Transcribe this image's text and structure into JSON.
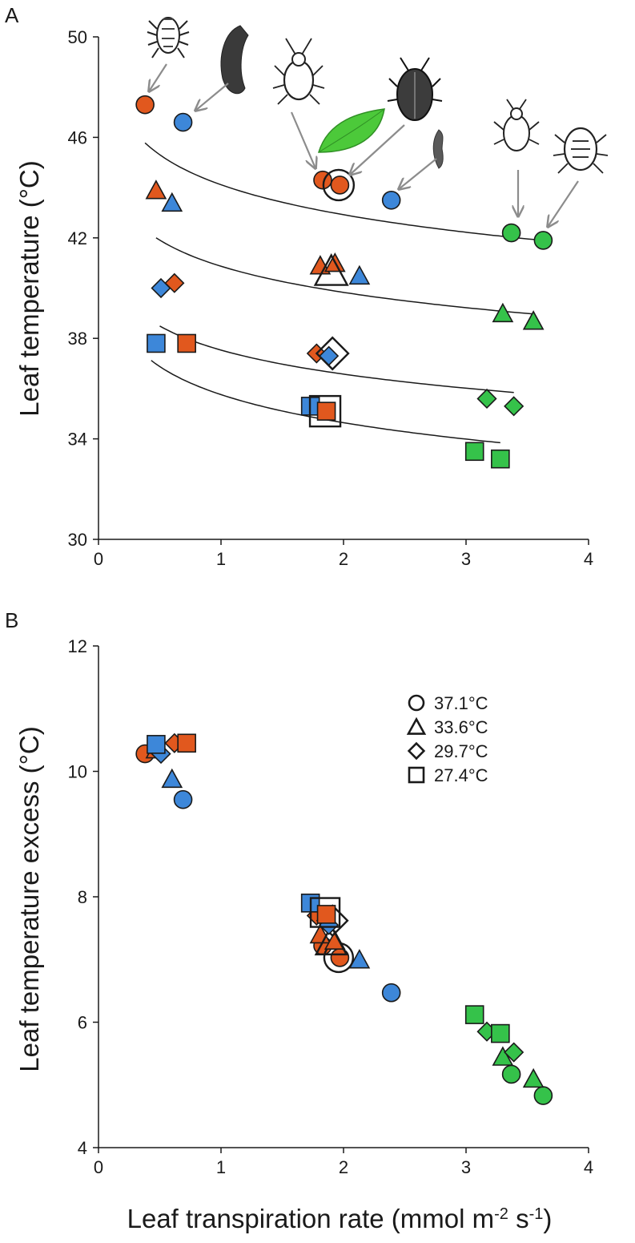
{
  "colors": {
    "orange": "#e1581e",
    "blue": "#3d87d9",
    "green": "#35c24a",
    "outline": "#1a1a1a",
    "arrow": "#8c8c8c",
    "leaf": "#4cc93a"
  },
  "xlabel_main": "Leaf transpiration rate (mmol m",
  "xlabel_sup1": "-2",
  "xlabel_mid": " s",
  "xlabel_sup2": "-1",
  "xlabel_end": ")",
  "chart_data": [
    {
      "panel": "A",
      "type": "scatter",
      "ylabel": "Leaf temperature (°C)",
      "xlim": [
        0,
        4
      ],
      "ylim": [
        30,
        50
      ],
      "xticks": [
        "0",
        "1",
        "2",
        "3",
        "4"
      ],
      "yticks": [
        "30",
        "34",
        "38",
        "42",
        "46",
        "50"
      ],
      "series": [
        {
          "name": "37.1°C",
          "marker": "circle",
          "points": [
            {
              "x": 0.38,
              "y": 47.3,
              "color": "orange"
            },
            {
              "x": 0.69,
              "y": 46.6,
              "color": "blue"
            },
            {
              "x": 1.83,
              "y": 44.3,
              "color": "orange"
            },
            {
              "x": 1.97,
              "y": 44.1,
              "color": "orange"
            },
            {
              "x": 1.96,
              "y": 44.1,
              "color": "none"
            },
            {
              "x": 2.39,
              "y": 43.5,
              "color": "blue"
            },
            {
              "x": 3.37,
              "y": 42.2,
              "color": "green"
            },
            {
              "x": 3.63,
              "y": 41.9,
              "color": "green"
            }
          ],
          "fit": {
            "a": 44.115,
            "b": -1.7214,
            "xrange": [
              0.38,
              3.63
            ]
          }
        },
        {
          "name": "33.6°C",
          "marker": "triangle",
          "points": [
            {
              "x": 0.47,
              "y": 43.9,
              "color": "orange"
            },
            {
              "x": 0.6,
              "y": 43.4,
              "color": "blue"
            },
            {
              "x": 1.81,
              "y": 40.9,
              "color": "orange"
            },
            {
              "x": 1.93,
              "y": 41.0,
              "color": "orange"
            },
            {
              "x": 1.9,
              "y": 40.7,
              "color": "none"
            },
            {
              "x": 2.13,
              "y": 40.5,
              "color": "blue"
            },
            {
              "x": 3.3,
              "y": 39.0,
              "color": "green"
            },
            {
              "x": 3.55,
              "y": 38.7,
              "color": "green"
            }
          ],
          "fit": {
            "a": 40.871,
            "b": -1.5013,
            "xrange": [
              0.47,
              3.55
            ]
          }
        },
        {
          "name": "29.7°C",
          "marker": "diamond",
          "points": [
            {
              "x": 0.51,
              "y": 40.0,
              "color": "blue"
            },
            {
              "x": 0.62,
              "y": 40.2,
              "color": "orange"
            },
            {
              "x": 1.78,
              "y": 37.4,
              "color": "orange"
            },
            {
              "x": 1.91,
              "y": 37.4,
              "color": "none"
            },
            {
              "x": 1.88,
              "y": 37.3,
              "color": "blue"
            },
            {
              "x": 3.17,
              "y": 35.6,
              "color": "green"
            },
            {
              "x": 3.39,
              "y": 35.3,
              "color": "green"
            }
          ],
          "fit": {
            "a": 37.534,
            "b": -1.3816,
            "xrange": [
              0.5,
              3.39
            ]
          }
        },
        {
          "name": "27.4°C",
          "marker": "square",
          "points": [
            {
              "x": 0.47,
              "y": 37.8,
              "color": "blue"
            },
            {
              "x": 0.72,
              "y": 37.8,
              "color": "orange"
            },
            {
              "x": 1.73,
              "y": 35.3,
              "color": "blue"
            },
            {
              "x": 1.86,
              "y": 35.1,
              "color": "orange"
            },
            {
              "x": 1.85,
              "y": 35.1,
              "color": "none"
            },
            {
              "x": 3.07,
              "y": 33.5,
              "color": "green"
            },
            {
              "x": 3.28,
              "y": 33.2,
              "color": "green"
            }
          ],
          "fit": {
            "a": 35.761,
            "b": -1.6122,
            "xrange": [
              0.43,
              3.28
            ]
          }
        }
      ]
    },
    {
      "panel": "B",
      "type": "scatter",
      "ylabel": "Leaf temperature excess (°C)",
      "xlim": [
        0,
        4
      ],
      "ylim": [
        4,
        12
      ],
      "xticks": [
        "0",
        "1",
        "2",
        "3",
        "4"
      ],
      "yticks": [
        "4",
        "6",
        "8",
        "10",
        "12"
      ],
      "legend": [
        "37.1°C",
        "33.6°C",
        "29.7°C",
        "27.4°C"
      ],
      "legend_position": "top-right",
      "series": [
        {
          "name": "37.1°C",
          "marker": "circle",
          "points": [
            {
              "x": 0.38,
              "y": 10.28,
              "color": "orange"
            },
            {
              "x": 0.69,
              "y": 9.55,
              "color": "blue"
            },
            {
              "x": 1.83,
              "y": 7.22,
              "color": "orange"
            },
            {
              "x": 1.97,
              "y": 7.03,
              "color": "orange"
            },
            {
              "x": 1.96,
              "y": 7.03,
              "color": "none"
            },
            {
              "x": 2.39,
              "y": 6.47,
              "color": "blue"
            },
            {
              "x": 3.37,
              "y": 5.17,
              "color": "green"
            },
            {
              "x": 3.63,
              "y": 4.83,
              "color": "green"
            }
          ]
        },
        {
          "name": "33.6°C",
          "marker": "triangle",
          "points": [
            {
              "x": 0.47,
              "y": 10.35,
              "color": "orange"
            },
            {
              "x": 0.6,
              "y": 9.88,
              "color": "blue"
            },
            {
              "x": 1.81,
              "y": 7.4,
              "color": "orange"
            },
            {
              "x": 1.93,
              "y": 7.3,
              "color": "orange"
            },
            {
              "x": 1.9,
              "y": 7.3,
              "color": "none"
            },
            {
              "x": 2.13,
              "y": 7.0,
              "color": "blue"
            },
            {
              "x": 3.3,
              "y": 5.45,
              "color": "green"
            },
            {
              "x": 3.55,
              "y": 5.1,
              "color": "green"
            }
          ]
        },
        {
          "name": "29.7°C",
          "marker": "diamond",
          "points": [
            {
              "x": 0.51,
              "y": 10.28,
              "color": "blue"
            },
            {
              "x": 0.62,
              "y": 10.45,
              "color": "orange"
            },
            {
              "x": 1.78,
              "y": 7.7,
              "color": "orange"
            },
            {
              "x": 1.91,
              "y": 7.62,
              "color": "none"
            },
            {
              "x": 1.88,
              "y": 7.55,
              "color": "blue"
            },
            {
              "x": 3.17,
              "y": 5.85,
              "color": "green"
            },
            {
              "x": 3.39,
              "y": 5.52,
              "color": "green"
            }
          ]
        },
        {
          "name": "27.4°C",
          "marker": "square",
          "points": [
            {
              "x": 0.47,
              "y": 10.43,
              "color": "blue"
            },
            {
              "x": 0.72,
              "y": 10.45,
              "color": "orange"
            },
            {
              "x": 1.73,
              "y": 7.9,
              "color": "blue"
            },
            {
              "x": 1.86,
              "y": 7.72,
              "color": "orange"
            },
            {
              "x": 1.85,
              "y": 7.75,
              "color": "none"
            },
            {
              "x": 3.07,
              "y": 6.12,
              "color": "green"
            },
            {
              "x": 3.28,
              "y": 5.82,
              "color": "green"
            }
          ]
        }
      ]
    }
  ]
}
